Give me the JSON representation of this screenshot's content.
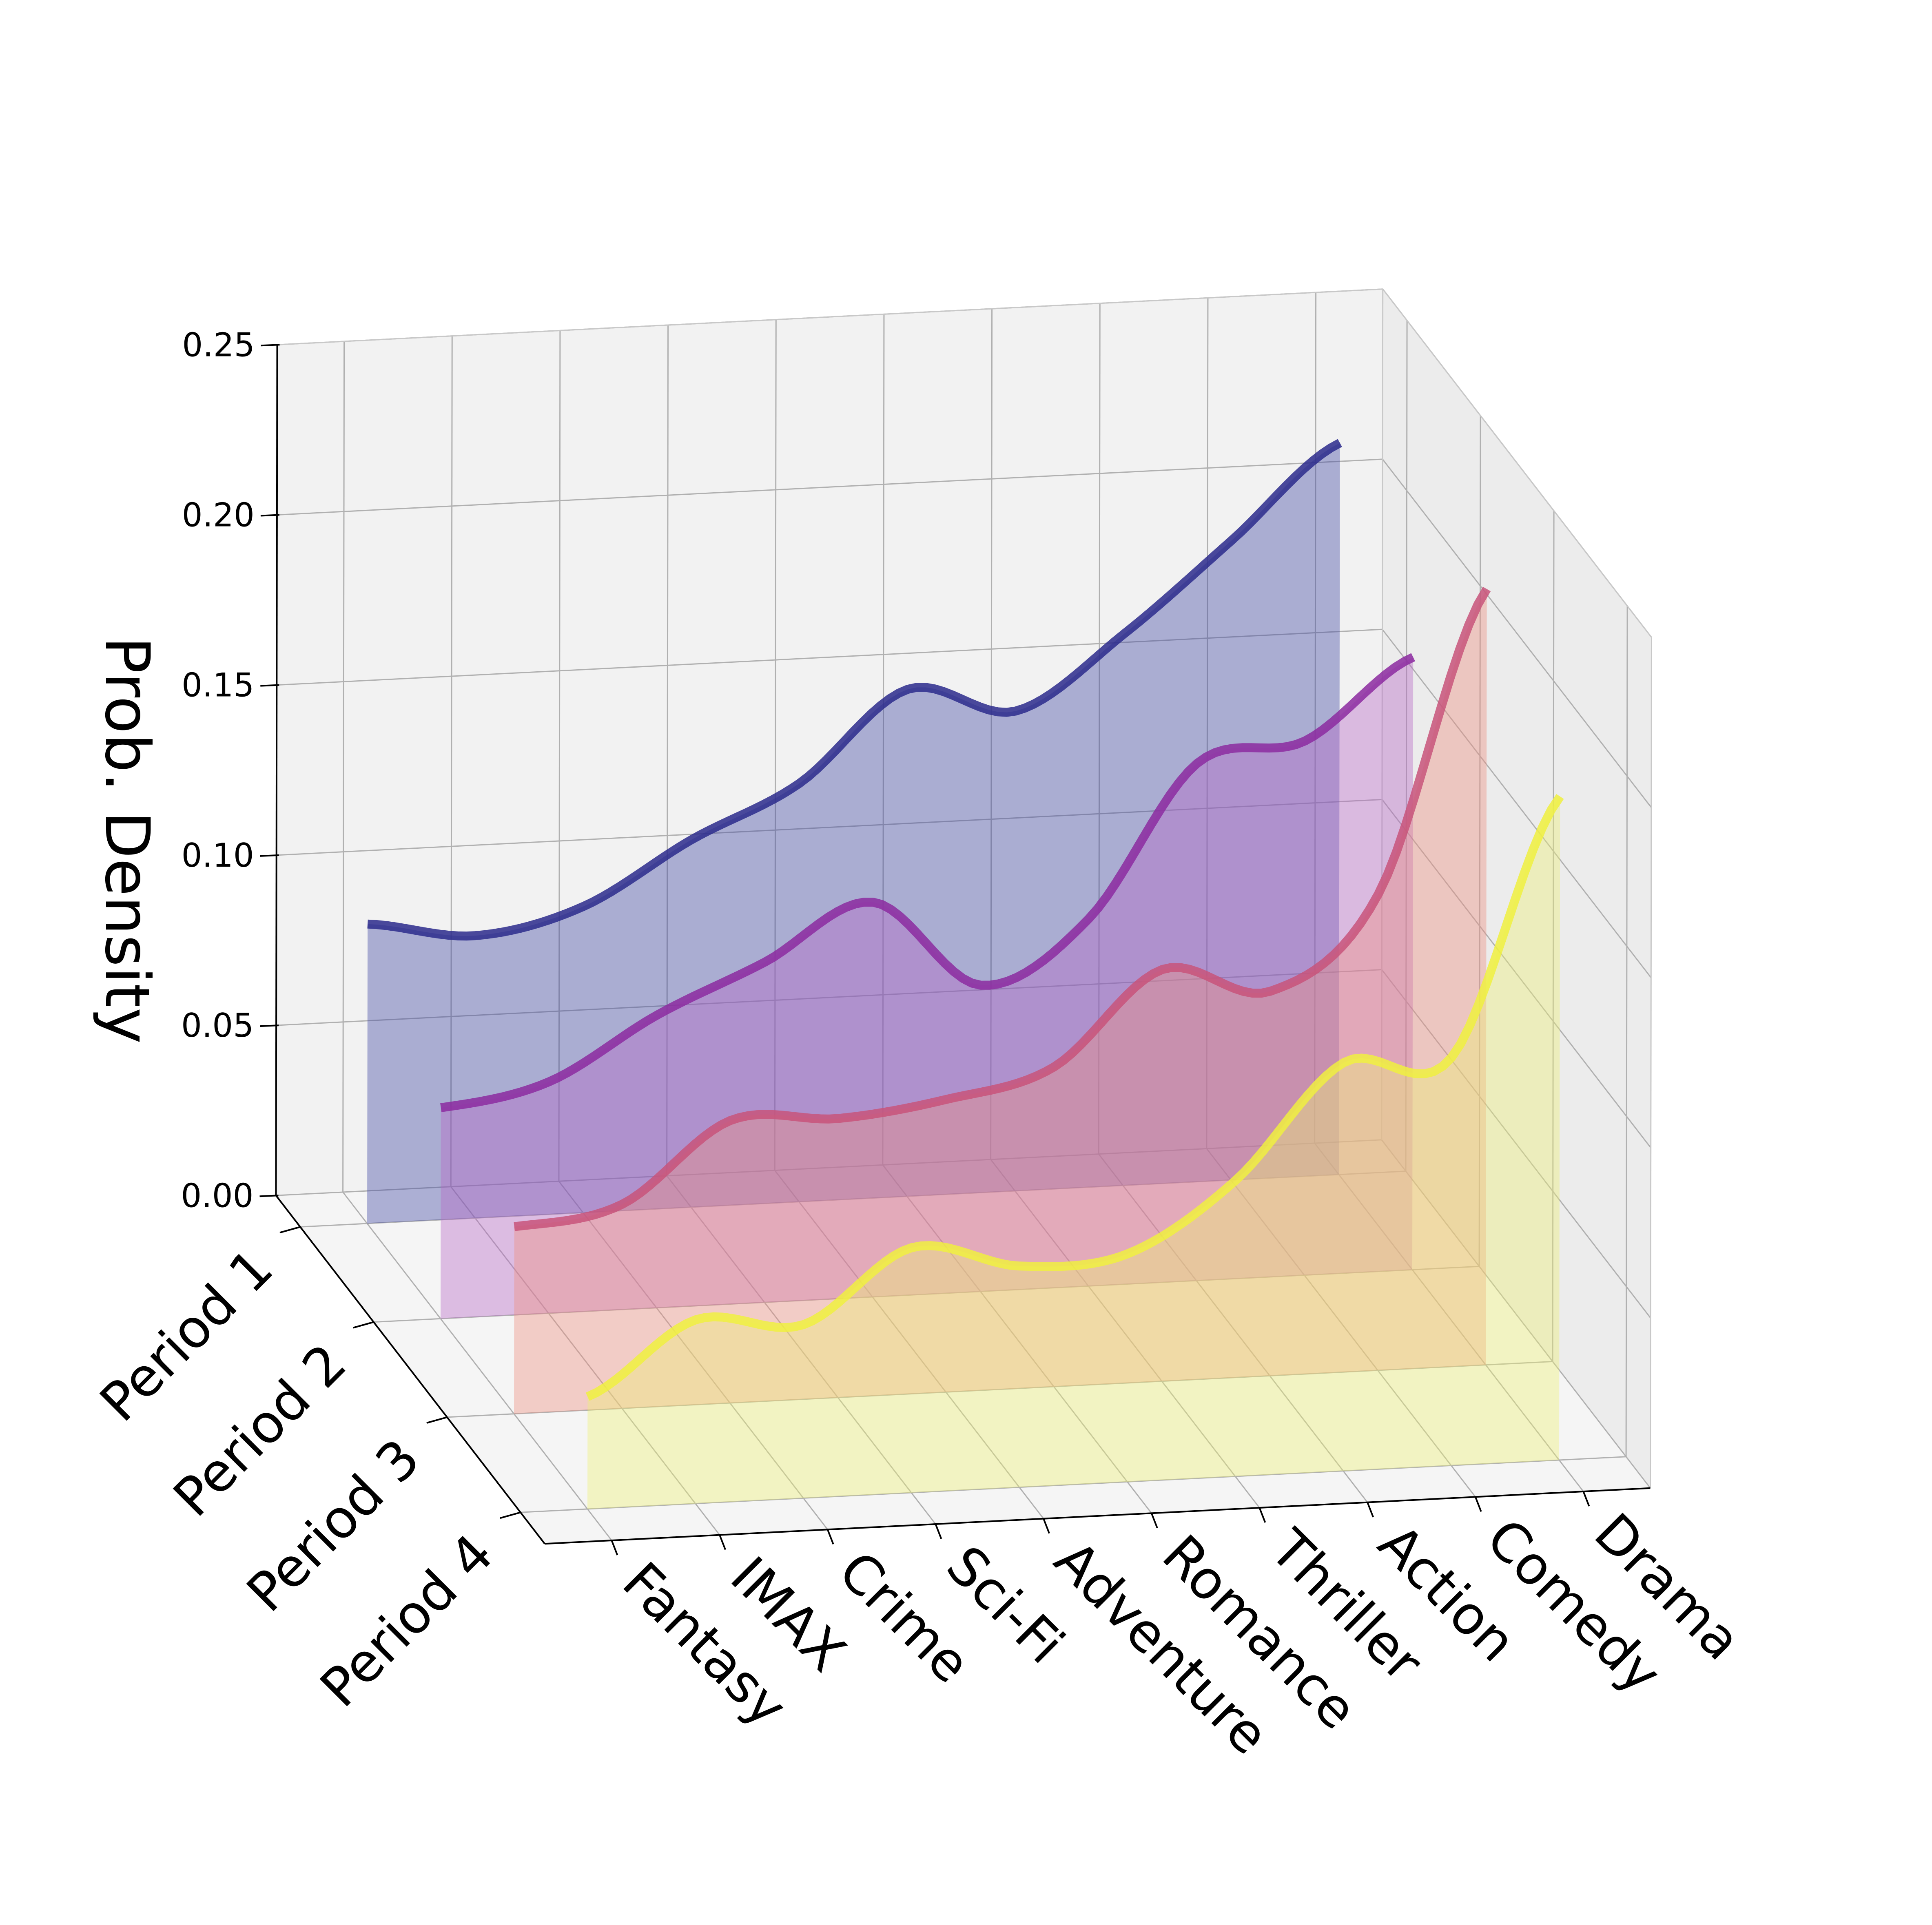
{
  "chart_data": {
    "type": "3d-ridge-density",
    "zlabel": "Prob. Density",
    "zlim": [
      0,
      0.25
    ],
    "zticks": [
      "0.00",
      "0.05",
      "0.10",
      "0.15",
      "0.20",
      "0.25"
    ],
    "categories": [
      "Fantasy",
      "IMAX",
      "Crime",
      "Sci-Fi",
      "Adventure",
      "Romance",
      "Thriller",
      "Action",
      "Comedy",
      "Drama"
    ],
    "periods": [
      "Period 1",
      "Period 2",
      "Period 3",
      "Period 4"
    ],
    "series": [
      {
        "name": "Period 1",
        "color": "#2b2a8c",
        "fill": "#3f47a3",
        "values": [
          0.088,
          0.083,
          0.09,
          0.108,
          0.123,
          0.149,
          0.141,
          0.162,
          0.188,
          0.215
        ]
      },
      {
        "name": "Period 2",
        "color": "#8c2aa0",
        "fill": "#b766c5",
        "values": [
          0.062,
          0.068,
          0.086,
          0.1,
          0.116,
          0.09,
          0.108,
          0.152,
          0.157,
          0.18
        ]
      },
      {
        "name": "Period 3",
        "color": "#c8547a",
        "fill": "#ee8f80",
        "values": [
          0.055,
          0.06,
          0.083,
          0.082,
          0.086,
          0.094,
          0.121,
          0.113,
          0.14,
          0.228
        ]
      },
      {
        "name": "Period 4",
        "color": "#f0f040",
        "fill": "#eef075",
        "values": [
          0.033,
          0.054,
          0.051,
          0.072,
          0.065,
          0.067,
          0.087,
          0.12,
          0.12,
          0.195
        ]
      }
    ]
  }
}
